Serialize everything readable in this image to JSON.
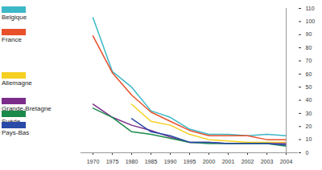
{
  "chart_data": {
    "type": "line",
    "categories": [
      "1970",
      "1975",
      "1980",
      "1985",
      "1990",
      "1995",
      "2000",
      "2001",
      "2002",
      "2003",
      "2004"
    ],
    "series": [
      {
        "name": "Belgique",
        "color": "#3cb8c8",
        "values": [
          103,
          62,
          50,
          32,
          27,
          18,
          14,
          14,
          13,
          14,
          13
        ]
      },
      {
        "name": "France",
        "color": "#e8502a",
        "values": [
          89,
          61,
          44,
          31,
          24,
          17,
          13,
          13,
          13,
          10,
          10
        ]
      },
      {
        "name": "Allemagne",
        "color": "#f5d020",
        "values": [
          null,
          null,
          37,
          24,
          21,
          14,
          10,
          9,
          8,
          8,
          8
        ]
      },
      {
        "name": "Grande-Bretagne",
        "color": "#7b2c8a",
        "values": [
          37,
          27,
          21,
          17,
          12,
          8,
          8,
          7,
          7,
          7,
          7
        ]
      },
      {
        "name": "Suède",
        "color": "#1a8a4a",
        "values": [
          34,
          27,
          16,
          14,
          11,
          8,
          7,
          7,
          7,
          7,
          5
        ]
      },
      {
        "name": "Pays-Bas",
        "color": "#2a4aa8",
        "values": [
          null,
          null,
          26,
          16,
          13,
          8,
          8,
          7,
          7,
          7,
          6
        ]
      }
    ],
    "ylim": [
      0,
      110
    ],
    "yticks": [
      0,
      10,
      20,
      30,
      40,
      50,
      60,
      70,
      80,
      90,
      100,
      110
    ],
    "grid": false,
    "legend": "left"
  }
}
